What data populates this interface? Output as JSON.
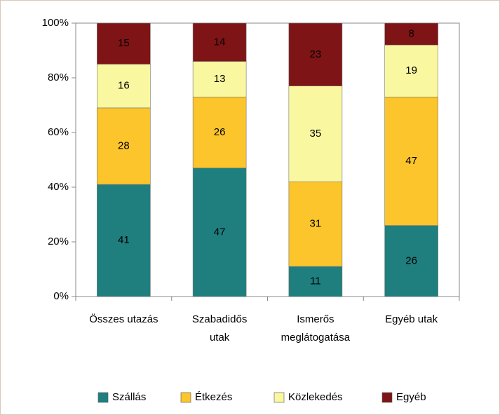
{
  "chart_data": {
    "type": "stacked_bar_100",
    "categories": [
      "Összes utazás",
      "Szabadidős\nutak",
      "Ismerős\nmeglátogatása",
      "Egyéb utak"
    ],
    "series": [
      {
        "name": "Szállás",
        "color": "#1f7f7f",
        "values": [
          41,
          47,
          11,
          26
        ]
      },
      {
        "name": "Étkezés",
        "color": "#fcc52c",
        "values": [
          28,
          26,
          31,
          47
        ]
      },
      {
        "name": "Közlekedés",
        "color": "#f9f7a0",
        "values": [
          16,
          13,
          35,
          19
        ]
      },
      {
        "name": "Egyéb",
        "color": "#7f1416",
        "values": [
          15,
          14,
          23,
          8
        ]
      }
    ],
    "ylim": [
      0,
      100
    ],
    "yticks": [
      {
        "value": 0,
        "label": "0%"
      },
      {
        "value": 20,
        "label": "20%"
      },
      {
        "value": 40,
        "label": "40%"
      },
      {
        "value": 60,
        "label": "60%"
      },
      {
        "value": 80,
        "label": "80%"
      },
      {
        "value": 100,
        "label": "100%"
      }
    ],
    "legend": "bottom"
  }
}
